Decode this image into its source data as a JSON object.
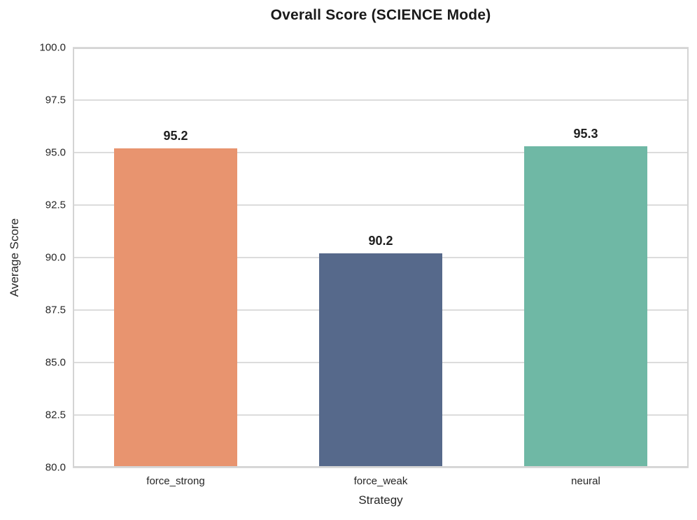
{
  "chart_data": {
    "type": "bar",
    "title": "Overall Score (SCIENCE Mode)",
    "xlabel": "Strategy",
    "ylabel": "Average Score",
    "categories": [
      "force_strong",
      "force_weak",
      "neural"
    ],
    "values": [
      95.2,
      90.2,
      95.3
    ],
    "value_labels": [
      "95.2",
      "90.2",
      "95.3"
    ],
    "bar_colors": [
      "#E8946F",
      "#56698B",
      "#6FB8A5"
    ],
    "ylim": [
      80.0,
      100.0
    ],
    "ytick_step": 2.5,
    "ytick_labels": [
      "100.0",
      "97.5",
      "95.0",
      "92.5",
      "90.0",
      "87.5",
      "85.0",
      "82.5",
      "80.0"
    ],
    "grid": "horizontal-gridlines-on",
    "legend": "none",
    "colors": {
      "gridline": "#dcdcdc",
      "spine": "#d4d4d4",
      "text": "#262626",
      "title_text": "#1a1a1a",
      "background": "#ffffff"
    }
  }
}
